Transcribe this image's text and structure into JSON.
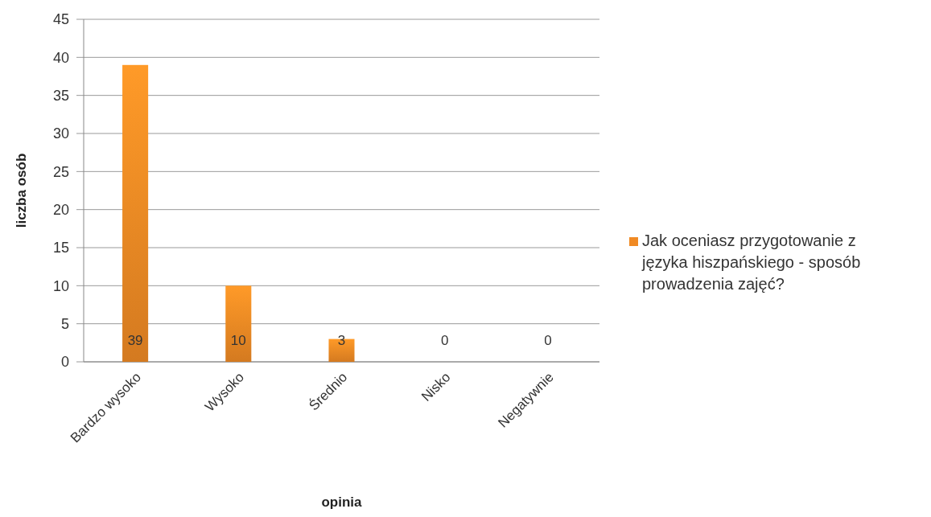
{
  "chart_data": {
    "type": "bar",
    "xlabel": "opinia",
    "ylabel": "liczba osób",
    "categories": [
      "Bardzo wysoko",
      "Wysoko",
      "Średnio",
      "Nisko",
      "Negatywnie"
    ],
    "series": [
      {
        "name": "Jak oceniasz przygotowanie z języka hiszpańskiego - sposób prowadzenia zajęć?",
        "color": "#f08a24",
        "values": [
          39,
          10,
          3,
          0,
          0
        ]
      }
    ],
    "ylim": [
      0,
      45
    ],
    "yticks": [
      0,
      5,
      10,
      15,
      20,
      25,
      30,
      35,
      40,
      45
    ],
    "grid": "y",
    "legend": "right",
    "data_labels": true
  }
}
